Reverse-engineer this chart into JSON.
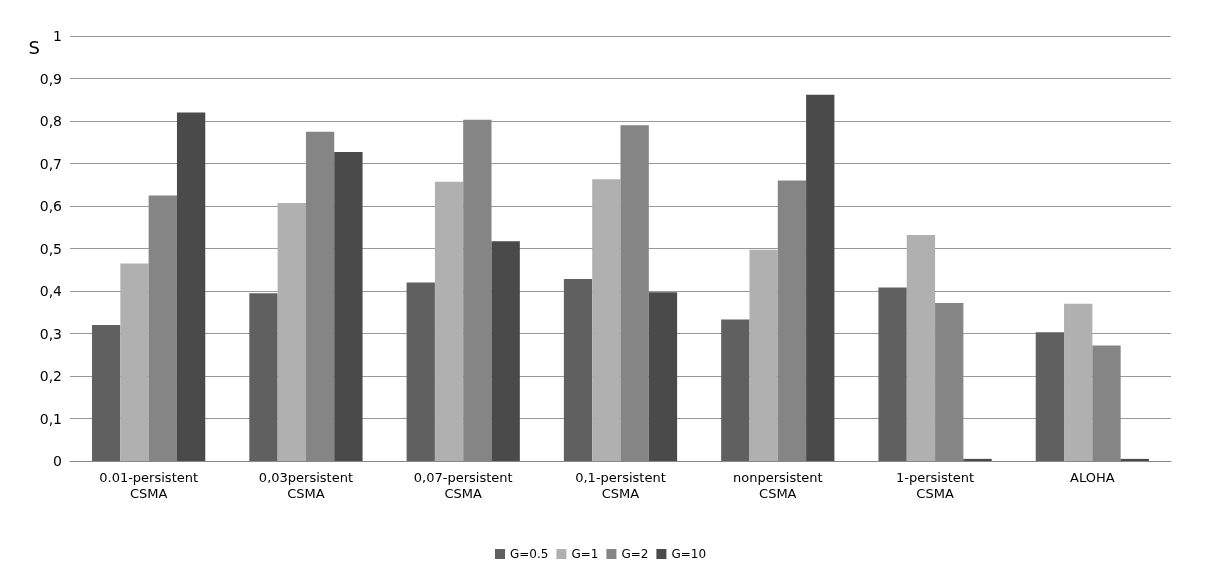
{
  "chart_data": {
    "type": "bar",
    "ylabel": "S",
    "categories": [
      "0.01-persistent\nCSMA",
      "0,03persistent\nCSMA",
      "0,07-persistent\nCSMA",
      "0,1-persistent\nCSMA",
      "nonpersistent\nCSMA",
      "1-persistent\nCSMA",
      "ALOHA"
    ],
    "series": [
      {
        "name": "G=0.5",
        "color": "#606060",
        "values": [
          0.32,
          0.395,
          0.42,
          0.428,
          0.333,
          0.408,
          0.303
        ]
      },
      {
        "name": "G=1",
        "color": "#b0b0b0",
        "values": [
          0.465,
          0.607,
          0.657,
          0.663,
          0.497,
          0.532,
          0.37
        ]
      },
      {
        "name": "G=2",
        "color": "#858585",
        "values": [
          0.625,
          0.775,
          0.803,
          0.79,
          0.66,
          0.372,
          0.272
        ]
      },
      {
        "name": "G=10",
        "color": "#4a4a4a",
        "values": [
          0.82,
          0.727,
          0.517,
          0.397,
          0.862,
          0.005,
          0.005
        ]
      }
    ],
    "ylim": [
      0,
      1
    ],
    "yticks": [
      0,
      {
        "value": 0.1,
        "label": "0,1"
      },
      {
        "value": 0.2,
        "label": "0,2"
      },
      {
        "value": 0.3,
        "label": "0,3"
      },
      {
        "value": 0.4,
        "label": "0,4"
      },
      {
        "value": 0.5,
        "label": "0,5"
      },
      {
        "value": 0.6,
        "label": "0,6"
      },
      {
        "value": 0.7,
        "label": "0,7"
      },
      {
        "value": 0.8,
        "label": "0,8"
      },
      {
        "value": 0.9,
        "label": "0,9"
      },
      1
    ],
    "grid": "y",
    "legend": "bottom"
  }
}
